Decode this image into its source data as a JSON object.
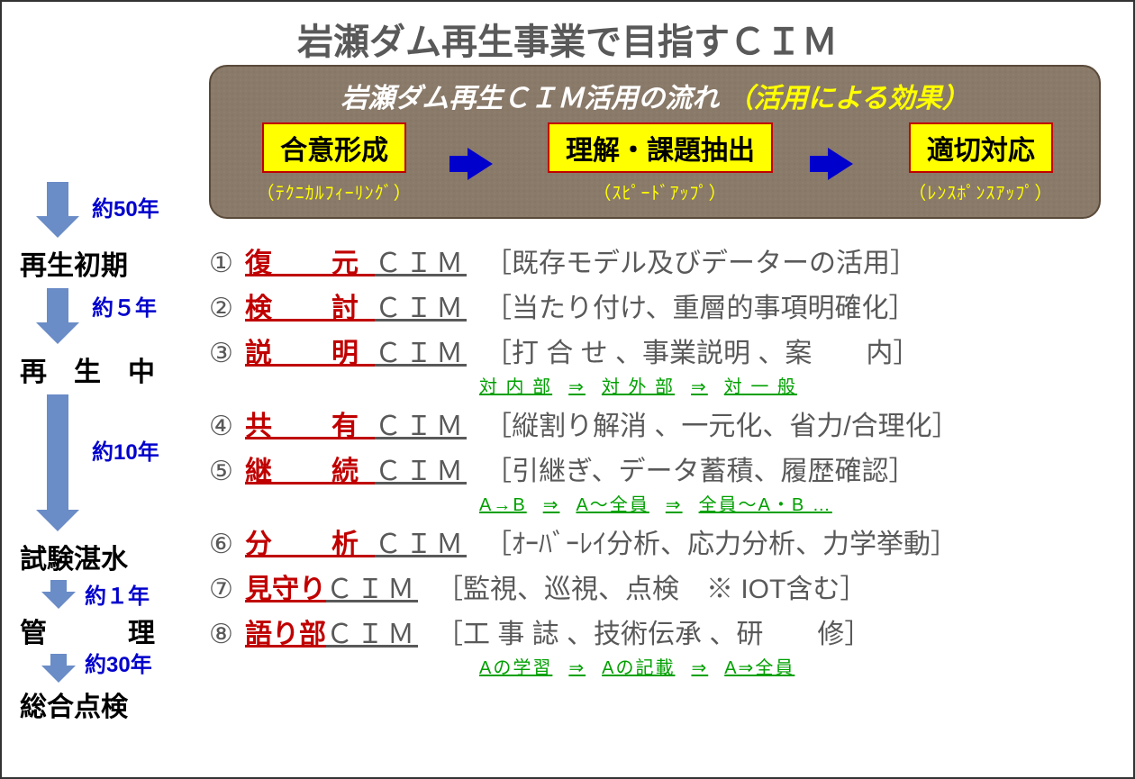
{
  "title": "岩瀬ダム再生事業で目指すＣＩＭ",
  "flowbox": {
    "title_main": "岩瀬ダム再生ＣＩＭ活用の流れ",
    "title_sub": "（活用による効果）",
    "steps": [
      {
        "label": "合意形成",
        "sub": "（ﾃｸﾆｶﾙﾌｨｰﾘﾝｸﾞ）"
      },
      {
        "label": "理解・課題抽出",
        "sub": "（ｽﾋﾟｰﾄﾞｱｯﾌﾟ）"
      },
      {
        "label": "適切対応",
        "sub": "（ﾚﾝｽﾎﾟﾝｽｱｯﾌﾟ）"
      }
    ],
    "colors": {
      "box_bg": "#8a7a6a",
      "pill_bg": "#ffff00",
      "pill_border": "#c00000",
      "pill_text": "#000000",
      "arrow": "#0000cc",
      "title_text": "#ffffff",
      "sub_text": "#ffff00"
    }
  },
  "timeline": {
    "arrow_color": "#6a8cc7",
    "year_color": "#0000cc",
    "phases": [
      {
        "year": "約50年",
        "label": "再生初期",
        "arrow_h": 40
      },
      {
        "year": "約５年",
        "label": "再　生　中",
        "arrow_h": 40
      },
      {
        "year": "約10年",
        "label": "試験湛水",
        "arrow_h": 130
      },
      {
        "year": "約１年",
        "label": "管　　　理",
        "arrow_h": 14
      },
      {
        "year": "約30年",
        "label": "総合点検",
        "arrow_h": 14
      }
    ]
  },
  "cim_items": [
    {
      "num": "①",
      "name": "復　元",
      "suffix": "ＣＩＭ",
      "desc": "［既存モデル及びデーターの活用］"
    },
    {
      "num": "②",
      "name": "検　討",
      "suffix": "ＣＩＭ",
      "desc": "［当たり付け、重層的事項明確化］"
    },
    {
      "num": "③",
      "name": "説　明",
      "suffix": "ＣＩＭ",
      "desc": "［打 合 せ 、事業説明 、案　　内］",
      "green": [
        "対 内 部",
        "対 外 部",
        "対 一 般"
      ]
    },
    {
      "num": "④",
      "name": "共　有",
      "suffix": "ＣＩＭ",
      "desc": "［縦割り解消 、一元化、省力/合理化］"
    },
    {
      "num": "⑤",
      "name": "継　続",
      "suffix": "ＣＩＭ",
      "desc": "［引継ぎ、データ蓄積、履歴確認］",
      "green": [
        "A→B",
        "A～全員",
        "全員～A・B …"
      ]
    },
    {
      "num": "⑥",
      "name": "分　析",
      "suffix": "ＣＩＭ",
      "desc": "［ｵｰﾊﾞｰﾚｲ分析、応力分析、力学挙動］"
    },
    {
      "num": "⑦",
      "name_tight": "見守り",
      "suffix": "ＣＩＭ",
      "desc": "［監視、巡視、点検　※ IOT含む］"
    },
    {
      "num": "⑧",
      "name_tight": "語り部",
      "suffix": "ＣＩＭ",
      "desc": "［工 事 誌 、技術伝承 、研　　修］",
      "green": [
        "Aの学習",
        "Aの記載",
        "A⇒全員"
      ]
    }
  ],
  "colors": {
    "title": "#595959",
    "body_text": "#595959",
    "red": "#c00000",
    "green": "#00a000",
    "black": "#000000"
  }
}
